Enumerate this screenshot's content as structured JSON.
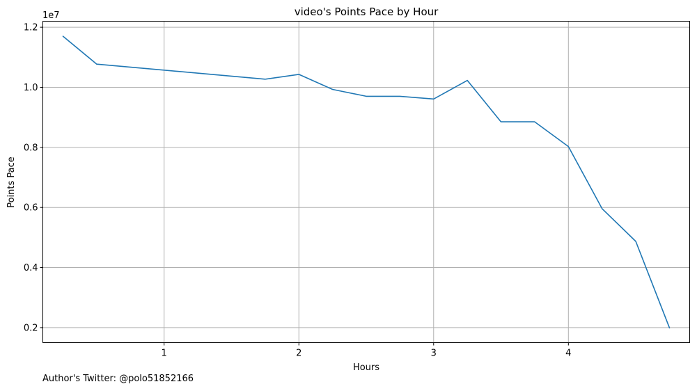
{
  "chart_data": {
    "type": "line",
    "title": "video's Points Pace by Hour",
    "xlabel": "Hours",
    "ylabel": "Points Pace",
    "y_offset_label": "1e7",
    "xlim": [
      0.1,
      4.9
    ],
    "ylim": [
      1500000,
      12200000
    ],
    "x_ticks": [
      1,
      2,
      3,
      4
    ],
    "x_tick_labels": [
      "1",
      "2",
      "3",
      "4"
    ],
    "y_ticks": [
      2000000,
      4000000,
      6000000,
      8000000,
      10000000,
      12000000
    ],
    "y_tick_labels": [
      "0.2",
      "0.4",
      "0.6",
      "0.8",
      "1.0",
      "1.2"
    ],
    "grid": true,
    "series": [
      {
        "color": "#1f77b4",
        "points": [
          {
            "x": 0.25,
            "y": 11700000
          },
          {
            "x": 0.5,
            "y": 10770000
          },
          {
            "x": 1.75,
            "y": 10270000
          },
          {
            "x": 2.0,
            "y": 10430000
          },
          {
            "x": 2.25,
            "y": 9930000
          },
          {
            "x": 2.5,
            "y": 9700000
          },
          {
            "x": 2.75,
            "y": 9700000
          },
          {
            "x": 3.0,
            "y": 9610000
          },
          {
            "x": 3.25,
            "y": 10230000
          },
          {
            "x": 3.5,
            "y": 8850000
          },
          {
            "x": 3.75,
            "y": 8850000
          },
          {
            "x": 4.0,
            "y": 8030000
          },
          {
            "x": 4.25,
            "y": 5960000
          },
          {
            "x": 4.5,
            "y": 4870000
          },
          {
            "x": 4.75,
            "y": 1990000
          }
        ]
      }
    ]
  },
  "footer": {
    "author_note": "Author's Twitter: @polo51852166"
  }
}
